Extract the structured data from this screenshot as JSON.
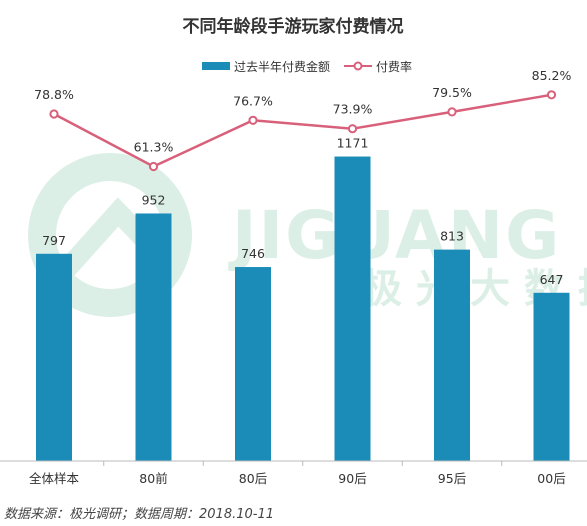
{
  "chart_data": {
    "type": "bar+line",
    "title": "不同年龄段手游玩家付费情况",
    "categories": [
      "全体样本",
      "80前",
      "80后",
      "90后",
      "95后",
      "00后"
    ],
    "series": [
      {
        "name": "过去半年付费金额",
        "type": "bar",
        "color": "#1b8bb8",
        "values": [
          797,
          952,
          746,
          1171,
          813,
          647
        ],
        "labels": [
          "797",
          "952",
          "746",
          "1171",
          "813",
          "647"
        ]
      },
      {
        "name": "付费率",
        "type": "line",
        "color": "#d9607a",
        "values": [
          78.8,
          61.3,
          76.7,
          73.9,
          79.5,
          85.2
        ],
        "labels": [
          "78.8%",
          "61.3%",
          "76.7%",
          "73.9%",
          "79.5%",
          "85.2%"
        ]
      }
    ],
    "ylim": [
      0,
      1400
    ],
    "y2lim": [
      0,
      100
    ],
    "legend": "top-center",
    "grid": false,
    "watermark": {
      "text_latin": "JIGUANG",
      "text_cn": "极光大数据",
      "color": "#dcefe6"
    }
  },
  "source_note": "数据来源：极光调研；数据周期：2018.10-11"
}
